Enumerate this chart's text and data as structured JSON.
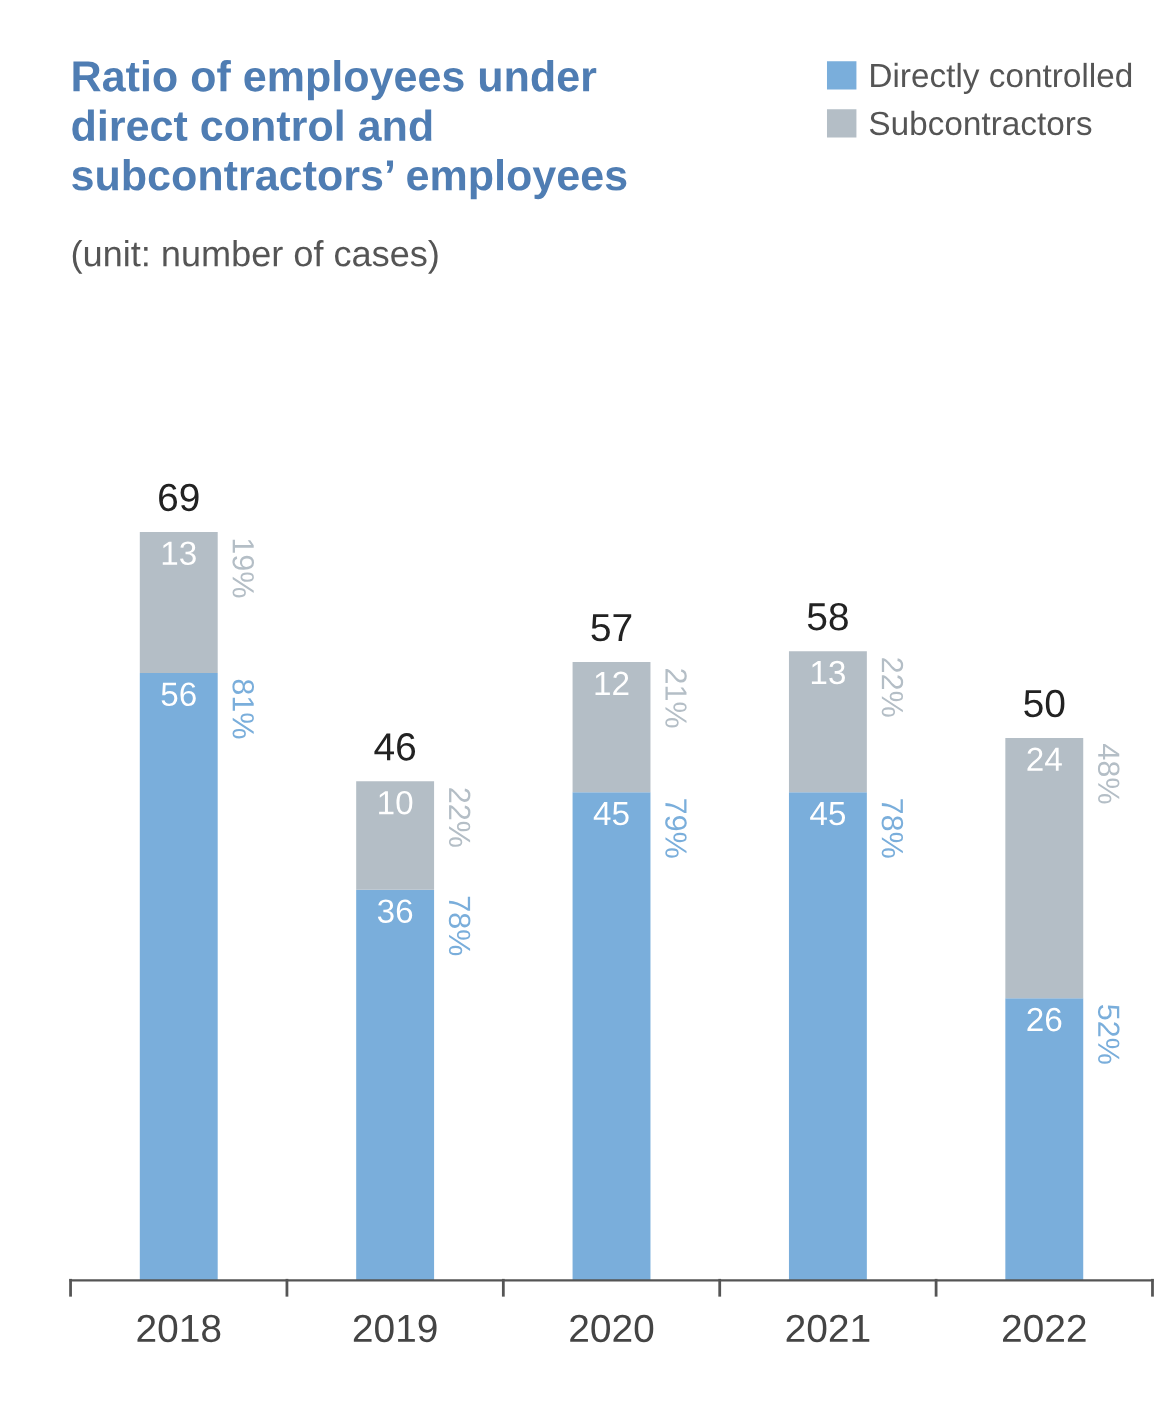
{
  "chart_data": {
    "type": "bar",
    "title": "Ratio of employees under\ndirect control and\nsubcontractors’ employees",
    "subtitle": "(unit: number of cases)",
    "categories": [
      "2018",
      "2019",
      "2020",
      "2021",
      "2022"
    ],
    "stacked": true,
    "data_labels": true,
    "legend": "top right",
    "series": [
      {
        "name": "Directly controlled",
        "color": "#7aaedb",
        "values": [
          56,
          36,
          45,
          45,
          26
        ]
      },
      {
        "name": "Subcontractors",
        "color": "#b4bec6",
        "values": [
          13,
          10,
          12,
          13,
          24
        ]
      }
    ],
    "totals": [
      "69",
      "46",
      "57",
      "58",
      "50"
    ],
    "annotations": [
      {
        "text": "81%",
        "x": "2018",
        "y": 56
      },
      {
        "text": "19%",
        "x": "2018",
        "y": 69
      },
      {
        "text": "78%",
        "x": "2019",
        "y": 36
      },
      {
        "text": "22%",
        "x": "2019",
        "y": 46
      },
      {
        "text": "79%",
        "x": "2020",
        "y": 45
      },
      {
        "text": "21%",
        "x": "2020",
        "y": 57
      },
      {
        "text": "78%",
        "x": "2021",
        "y": 45
      },
      {
        "text": "22%",
        "x": "2021",
        "y": 58
      },
      {
        "text": "52%",
        "x": "2022",
        "y": 26
      },
      {
        "text": "48%",
        "x": "2022",
        "y": 50
      }
    ]
  }
}
